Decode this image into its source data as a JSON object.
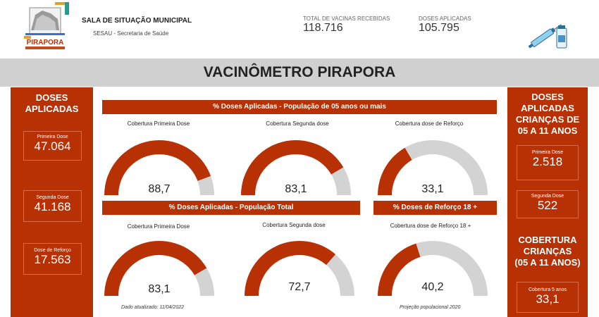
{
  "header": {
    "logo_text": "PIRAPORA",
    "title": "SALA DE SITUAÇÃO MUNICIPAL",
    "subtitle": "SESAU - Secretaria de Saúde",
    "kpis": [
      {
        "label": "TOTAL DE VACINAS RECEBIDAS",
        "value": "118.716"
      },
      {
        "label": "DOSES APLICADAS",
        "value": "105.795"
      }
    ]
  },
  "main_title": "VACINÔMETRO PIRAPORA",
  "left_panel": {
    "heading_line1": "DOSES",
    "heading_line2": "APLICADAS",
    "cards": [
      {
        "label": "Primeira Dose",
        "value": "47.064"
      },
      {
        "label": "Segunda Dose",
        "value": "41.168"
      },
      {
        "label": "Dose de Reforço",
        "value": "17.563"
      }
    ]
  },
  "right_panel": {
    "heading_lines": [
      "DOSES",
      "APLICADAS",
      "CRIANÇAS DE",
      "05 A 11 ANOS"
    ],
    "cards": [
      {
        "label": "Primeira Dose",
        "value": "2.518"
      },
      {
        "label": "Segunda Dose",
        "value": "522"
      }
    ],
    "coverage_heading_lines": [
      "COBERTURA",
      "CRIANÇAS",
      "(05 A 11 ANOS)"
    ],
    "coverage_card": {
      "label": "Cobertura 5 anos",
      "value": "33,1"
    }
  },
  "sections": {
    "pop5": "% Doses Aplicadas - População de 05 anos ou mais",
    "pop_total": "% Doses Aplicadas - População Total",
    "reforco18": "% Doses de Reforço 18 +"
  },
  "gauges": [
    {
      "title": "Cobertura Primeira Dose",
      "value": "88,7",
      "percent": 88.7
    },
    {
      "title": "Cobertura Segunda dose",
      "value": "83,1",
      "percent": 83.1
    },
    {
      "title": "Cobertura dose de Reforço",
      "value": "33,1",
      "percent": 33.1
    },
    {
      "title": "Cobertura Primeira Dose",
      "value": "83,1",
      "percent": 83.1
    },
    {
      "title": "Cobertura Segunda dose",
      "value": "72,7",
      "percent": 72.7
    },
    {
      "title": "Cobertura dose de Reforço 18 +",
      "value": "40,2",
      "percent": 40.2
    }
  ],
  "footnotes": {
    "updated": "Dado atualizado: 11/04/2022",
    "projection": "Projeção populacional 2020"
  },
  "colors": {
    "accent": "#b83104",
    "gauge_track": "#d3d3d3",
    "title_bar": "#d0d0d0"
  }
}
